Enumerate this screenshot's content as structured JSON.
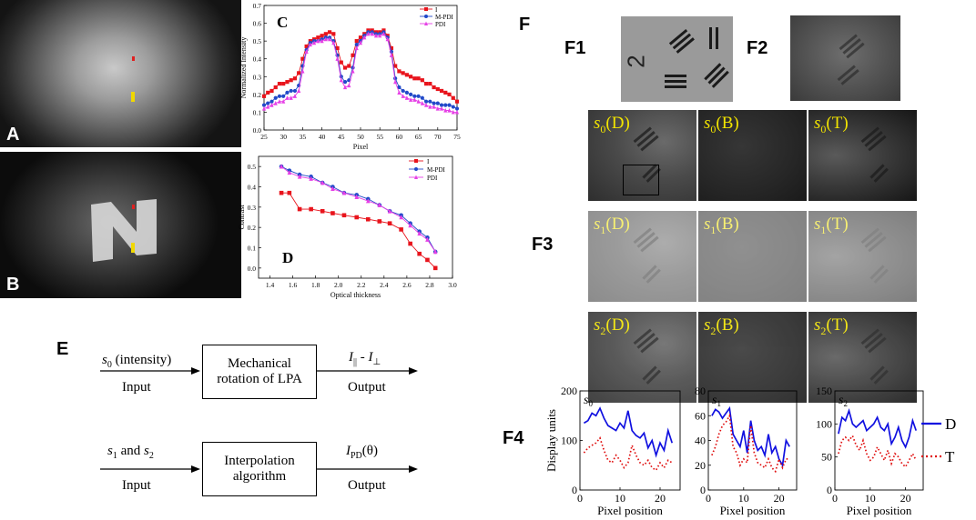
{
  "panels": {
    "A": {
      "label": "A"
    },
    "B": {
      "label": "B"
    },
    "E": {
      "label": "E"
    },
    "F": {
      "label": "F"
    },
    "F1": {
      "label": "F1"
    },
    "F2": {
      "label": "F2"
    },
    "F3": {
      "label": "F3"
    },
    "F4": {
      "label": "F4"
    }
  },
  "chart_data": [
    {
      "id": "C",
      "panel_label": "C",
      "type": "line",
      "xlabel": "Pixel",
      "ylabel": "Normalized Intensity",
      "xlim": [
        25,
        75
      ],
      "ylim": [
        0.0,
        0.7
      ],
      "x_ticks": [
        "25",
        "30",
        "35",
        "40",
        "45",
        "50",
        "55",
        "60",
        "65",
        "70",
        "75"
      ],
      "y_ticks": [
        "0.0",
        "0.1",
        "0.2",
        "0.3",
        "0.4",
        "0.5",
        "0.6",
        "0.7"
      ],
      "legend": [
        "I",
        "M-PDI",
        "PDI"
      ],
      "x": [
        25,
        26,
        27,
        28,
        29,
        30,
        31,
        32,
        33,
        34,
        35,
        36,
        37,
        38,
        39,
        40,
        41,
        42,
        43,
        44,
        45,
        46,
        47,
        48,
        49,
        50,
        51,
        52,
        53,
        54,
        55,
        56,
        57,
        58,
        59,
        60,
        61,
        62,
        63,
        64,
        65,
        66,
        67,
        68,
        69,
        70,
        71,
        72,
        73,
        74,
        75
      ],
      "series": [
        {
          "name": "I",
          "color": "#e8141c",
          "marker": "square",
          "values": [
            0.19,
            0.21,
            0.22,
            0.24,
            0.26,
            0.26,
            0.27,
            0.28,
            0.29,
            0.32,
            0.4,
            0.47,
            0.5,
            0.51,
            0.52,
            0.53,
            0.54,
            0.55,
            0.54,
            0.46,
            0.38,
            0.35,
            0.36,
            0.42,
            0.5,
            0.52,
            0.54,
            0.56,
            0.56,
            0.55,
            0.55,
            0.56,
            0.53,
            0.46,
            0.36,
            0.33,
            0.32,
            0.31,
            0.3,
            0.29,
            0.29,
            0.28,
            0.26,
            0.26,
            0.24,
            0.23,
            0.22,
            0.21,
            0.2,
            0.18,
            0.16
          ]
        },
        {
          "name": "M-PDI",
          "color": "#2149c9",
          "marker": "circle",
          "values": [
            0.14,
            0.15,
            0.16,
            0.18,
            0.19,
            0.19,
            0.21,
            0.22,
            0.22,
            0.25,
            0.36,
            0.45,
            0.49,
            0.5,
            0.5,
            0.51,
            0.52,
            0.52,
            0.5,
            0.42,
            0.3,
            0.27,
            0.28,
            0.35,
            0.48,
            0.5,
            0.53,
            0.55,
            0.55,
            0.54,
            0.54,
            0.55,
            0.52,
            0.44,
            0.29,
            0.24,
            0.22,
            0.21,
            0.2,
            0.19,
            0.19,
            0.18,
            0.16,
            0.16,
            0.15,
            0.15,
            0.14,
            0.14,
            0.14,
            0.13,
            0.12
          ]
        },
        {
          "name": "PDI",
          "color": "#e640e6",
          "marker": "triangle",
          "values": [
            0.12,
            0.13,
            0.14,
            0.15,
            0.16,
            0.16,
            0.18,
            0.18,
            0.19,
            0.22,
            0.33,
            0.44,
            0.48,
            0.49,
            0.5,
            0.5,
            0.51,
            0.51,
            0.49,
            0.4,
            0.28,
            0.24,
            0.25,
            0.33,
            0.46,
            0.49,
            0.52,
            0.54,
            0.54,
            0.53,
            0.53,
            0.54,
            0.51,
            0.42,
            0.27,
            0.21,
            0.19,
            0.18,
            0.17,
            0.17,
            0.16,
            0.15,
            0.14,
            0.13,
            0.13,
            0.12,
            0.12,
            0.11,
            0.11,
            0.1,
            0.1
          ]
        }
      ]
    },
    {
      "id": "D",
      "panel_label": "D",
      "type": "line",
      "xlabel": "Optical thickness",
      "ylabel": "Contrast",
      "xlim": [
        1.3,
        3.0
      ],
      "ylim": [
        -0.05,
        0.55
      ],
      "x_ticks": [
        "1.4",
        "1.6",
        "1.8",
        "2.0",
        "2.2",
        "2.4",
        "2.6",
        "2.8",
        "3.0"
      ],
      "y_ticks": [
        "0.0",
        "0.1",
        "0.2",
        "0.3",
        "0.4",
        "0.5"
      ],
      "legend": [
        "I",
        "M-PDI",
        "PDI"
      ],
      "x": [
        1.5,
        1.57,
        1.66,
        1.76,
        1.86,
        1.95,
        2.05,
        2.16,
        2.26,
        2.36,
        2.45,
        2.55,
        2.63,
        2.71,
        2.78,
        2.85
      ],
      "series": [
        {
          "name": "I",
          "color": "#e8141c",
          "marker": "square",
          "values": [
            0.37,
            0.37,
            0.29,
            0.29,
            0.28,
            0.27,
            0.26,
            0.25,
            0.24,
            0.23,
            0.22,
            0.19,
            0.12,
            0.07,
            0.04,
            0.0
          ]
        },
        {
          "name": "M-PDI",
          "color": "#2149c9",
          "marker": "circle",
          "values": [
            0.5,
            0.48,
            0.46,
            0.45,
            0.42,
            0.4,
            0.37,
            0.36,
            0.34,
            0.31,
            0.28,
            0.26,
            0.22,
            0.18,
            0.15,
            0.08
          ]
        },
        {
          "name": "PDI",
          "color": "#e640e6",
          "marker": "triangle",
          "values": [
            0.5,
            0.47,
            0.45,
            0.44,
            0.42,
            0.39,
            0.37,
            0.35,
            0.33,
            0.31,
            0.28,
            0.25,
            0.21,
            0.17,
            0.14,
            0.08
          ]
        }
      ]
    },
    {
      "id": "F4a",
      "type": "line",
      "title": "s0",
      "xlabel": "Pixel position",
      "ylabel": "Display units",
      "xlim": [
        0,
        25
      ],
      "ylim": [
        0,
        200
      ],
      "x_ticks": [
        "0",
        "10",
        "20"
      ],
      "y_ticks": [
        "0",
        "100",
        "200"
      ],
      "x": [
        1,
        2,
        3,
        4,
        5,
        6,
        7,
        8,
        9,
        10,
        11,
        12,
        13,
        14,
        15,
        16,
        17,
        18,
        19,
        20,
        21,
        22,
        23
      ],
      "series": [
        {
          "name": "D",
          "color": "#1010e0",
          "style": "solid",
          "values": [
            135,
            140,
            155,
            150,
            165,
            145,
            130,
            125,
            120,
            135,
            125,
            160,
            120,
            110,
            105,
            115,
            85,
            100,
            70,
            95,
            80,
            120,
            95
          ]
        },
        {
          "name": "T",
          "color": "#e01010",
          "style": "dotted",
          "values": [
            75,
            85,
            90,
            95,
            105,
            80,
            60,
            55,
            70,
            60,
            45,
            55,
            90,
            70,
            55,
            50,
            60,
            45,
            40,
            55,
            45,
            60,
            55
          ]
        }
      ]
    },
    {
      "id": "F4b",
      "type": "line",
      "title": "s1",
      "xlabel": "Pixel position",
      "ylabel": "",
      "xlim": [
        0,
        25
      ],
      "ylim": [
        0,
        80
      ],
      "x_ticks": [
        "0",
        "10",
        "20"
      ],
      "y_ticks": [
        "0",
        "20",
        "40",
        "60",
        "80"
      ],
      "x": [
        1,
        2,
        3,
        4,
        5,
        6,
        7,
        8,
        9,
        10,
        11,
        12,
        13,
        14,
        15,
        16,
        17,
        18,
        19,
        20,
        21,
        22,
        23
      ],
      "series": [
        {
          "name": "D",
          "color": "#1010e0",
          "style": "solid",
          "values": [
            60,
            65,
            63,
            58,
            62,
            66,
            45,
            40,
            35,
            48,
            30,
            56,
            40,
            32,
            35,
            28,
            45,
            30,
            35,
            25,
            20,
            40,
            35
          ]
        },
        {
          "name": "T",
          "color": "#e01010",
          "style": "dotted",
          "values": [
            28,
            35,
            45,
            52,
            55,
            60,
            35,
            30,
            20,
            25,
            22,
            52,
            30,
            22,
            20,
            18,
            25,
            18,
            15,
            25,
            18,
            25,
            25
          ]
        }
      ]
    },
    {
      "id": "F4c",
      "type": "line",
      "title": "s2",
      "xlabel": "Pixel position",
      "ylabel": "",
      "xlim": [
        0,
        25
      ],
      "ylim": [
        0,
        150
      ],
      "x_ticks": [
        "0",
        "10",
        "20"
      ],
      "y_ticks": [
        "0",
        "50",
        "100",
        "150"
      ],
      "x": [
        1,
        2,
        3,
        4,
        5,
        6,
        7,
        8,
        9,
        10,
        11,
        12,
        13,
        14,
        15,
        16,
        17,
        18,
        19,
        20,
        21,
        22,
        23
      ],
      "series": [
        {
          "name": "D",
          "color": "#1010e0",
          "style": "solid",
          "values": [
            85,
            110,
            105,
            120,
            100,
            95,
            100,
            105,
            90,
            95,
            100,
            110,
            95,
            90,
            100,
            70,
            80,
            95,
            75,
            65,
            80,
            105,
            90
          ]
        },
        {
          "name": "T",
          "color": "#e01010",
          "style": "dotted",
          "values": [
            55,
            75,
            80,
            75,
            82,
            68,
            60,
            75,
            55,
            45,
            50,
            65,
            55,
            45,
            60,
            40,
            55,
            50,
            40,
            35,
            45,
            55,
            45
          ]
        }
      ]
    }
  ],
  "f4_legend": {
    "D": "D",
    "T": "T",
    "D_color": "#1010e0",
    "T_color": "#e01010"
  },
  "f3_tiles": [
    {
      "s": "s",
      "sub": "0",
      "suffix": "(D)"
    },
    {
      "s": "s",
      "sub": "0",
      "suffix": "(B)"
    },
    {
      "s": "s",
      "sub": "0",
      "suffix": "(T)"
    },
    {
      "s": "s",
      "sub": "1",
      "suffix": "(D)"
    },
    {
      "s": "s",
      "sub": "1",
      "suffix": "(B)"
    },
    {
      "s": "s",
      "sub": "1",
      "suffix": "(T)"
    },
    {
      "s": "s",
      "sub": "2",
      "suffix": "(D)"
    },
    {
      "s": "s",
      "sub": "2",
      "suffix": "(B)"
    },
    {
      "s": "s",
      "sub": "2",
      "suffix": "(T)"
    }
  ],
  "f1_target_digit": "2",
  "flow": {
    "row1": {
      "input_var": "s",
      "input_sub": "0",
      "input_text": " (intensity)",
      "input_label": "Input",
      "box_line1": "Mechanical",
      "box_line2": "rotation of LPA",
      "output_var_a": "I",
      "output_sub_a": "||",
      "output_mid": " - ",
      "output_var_b": "I",
      "output_sub_b": "⊥",
      "output_label": "Output"
    },
    "row2": {
      "input_var_a": "s",
      "input_sub_a": "1",
      "input_mid": " and ",
      "input_var_b": "s",
      "input_sub_b": "2",
      "input_label": "Input",
      "box_line1": "Interpolation",
      "box_line2": "algorithm",
      "output_var": "I",
      "output_sub": "PD",
      "output_text": "(θ)",
      "output_label": "Output"
    }
  }
}
